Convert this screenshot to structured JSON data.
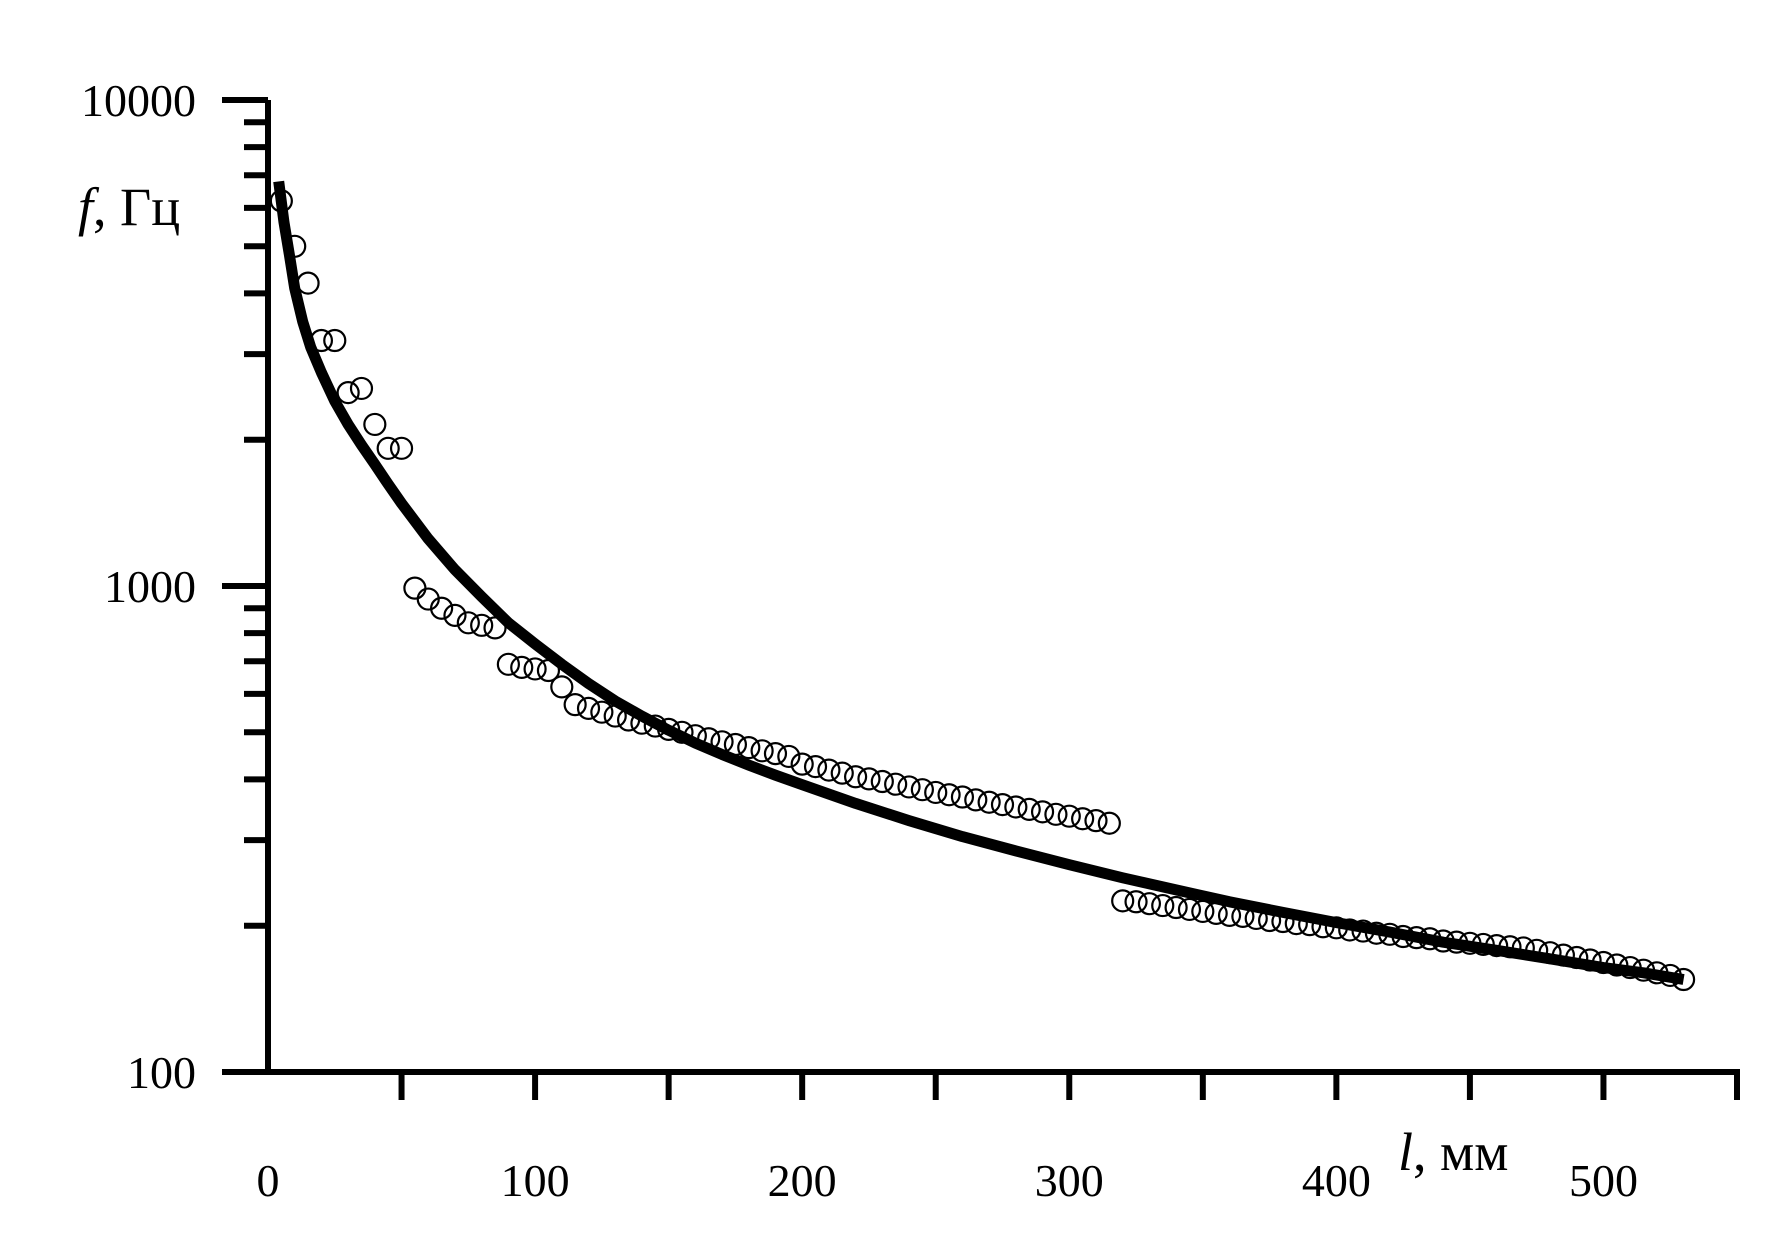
{
  "chart_data": {
    "type": "scatter",
    "title": "",
    "xlabel": {
      "symbol": "l",
      "unit": ", мм"
    },
    "ylabel": {
      "symbol": "f",
      "unit": ", Гц"
    },
    "x_scale": "linear",
    "y_scale": "log",
    "xlim": [
      0,
      550
    ],
    "ylim": [
      100,
      10000
    ],
    "x_ticks": [
      0,
      100,
      200,
      300,
      400,
      500
    ],
    "x_tick_labels": [
      "0",
      "100",
      "200",
      "300",
      "400",
      "500"
    ],
    "x_minor_ticks": [
      50,
      150,
      250,
      350,
      450,
      550
    ],
    "y_ticks": [
      100,
      1000,
      10000
    ],
    "y_tick_labels": [
      "100",
      "1000",
      "10000"
    ],
    "grid": false,
    "legend": "none",
    "colors": {
      "axis": "#000000",
      "curve": "#000000",
      "markers": "#000000"
    },
    "series": [
      {
        "type": "scatter",
        "marker": "open-circle",
        "points": [
          [
            5,
            6200
          ],
          [
            10,
            5000
          ],
          [
            15,
            4200
          ],
          [
            20,
            3200
          ],
          [
            25,
            3200
          ],
          [
            30,
            2500
          ],
          [
            35,
            2550
          ],
          [
            40,
            2150
          ],
          [
            45,
            1920
          ],
          [
            50,
            1920
          ],
          [
            55,
            990
          ],
          [
            60,
            940
          ],
          [
            65,
            900
          ],
          [
            70,
            870
          ],
          [
            75,
            840
          ],
          [
            80,
            830
          ],
          [
            85,
            820
          ],
          [
            90,
            690
          ],
          [
            95,
            680
          ],
          [
            100,
            675
          ],
          [
            105,
            670
          ],
          [
            110,
            620
          ],
          [
            115,
            570
          ],
          [
            120,
            560
          ],
          [
            125,
            550
          ],
          [
            130,
            540
          ],
          [
            135,
            530
          ],
          [
            140,
            522
          ],
          [
            145,
            515
          ],
          [
            150,
            507
          ],
          [
            155,
            500
          ],
          [
            160,
            492
          ],
          [
            165,
            485
          ],
          [
            170,
            478
          ],
          [
            175,
            472
          ],
          [
            180,
            465
          ],
          [
            185,
            458
          ],
          [
            190,
            452
          ],
          [
            195,
            446
          ],
          [
            200,
            430
          ],
          [
            205,
            425
          ],
          [
            210,
            418
          ],
          [
            215,
            412
          ],
          [
            220,
            405
          ],
          [
            225,
            401
          ],
          [
            230,
            396
          ],
          [
            235,
            391
          ],
          [
            240,
            386
          ],
          [
            245,
            381
          ],
          [
            250,
            376
          ],
          [
            255,
            372
          ],
          [
            260,
            368
          ],
          [
            265,
            363
          ],
          [
            270,
            359
          ],
          [
            275,
            355
          ],
          [
            280,
            351
          ],
          [
            285,
            347
          ],
          [
            290,
            343
          ],
          [
            295,
            339
          ],
          [
            300,
            336
          ],
          [
            305,
            332
          ],
          [
            310,
            329
          ],
          [
            315,
            325
          ],
          [
            320,
            225
          ],
          [
            325,
            224
          ],
          [
            330,
            222
          ],
          [
            335,
            220
          ],
          [
            340,
            218
          ],
          [
            345,
            216
          ],
          [
            350,
            214
          ],
          [
            355,
            212
          ],
          [
            360,
            210
          ],
          [
            365,
            209
          ],
          [
            370,
            207
          ],
          [
            375,
            205
          ],
          [
            380,
            204
          ],
          [
            385,
            202
          ],
          [
            390,
            201
          ],
          [
            395,
            199
          ],
          [
            400,
            198
          ],
          [
            405,
            196
          ],
          [
            410,
            195
          ],
          [
            415,
            193
          ],
          [
            420,
            192
          ],
          [
            425,
            190
          ],
          [
            430,
            189
          ],
          [
            435,
            188
          ],
          [
            440,
            186
          ],
          [
            445,
            185
          ],
          [
            450,
            184
          ],
          [
            455,
            183
          ],
          [
            460,
            182
          ],
          [
            465,
            181
          ],
          [
            470,
            180
          ],
          [
            475,
            178
          ],
          [
            480,
            176
          ],
          [
            485,
            174
          ],
          [
            490,
            172
          ],
          [
            495,
            170
          ],
          [
            500,
            168
          ],
          [
            505,
            166
          ],
          [
            510,
            164
          ],
          [
            515,
            162
          ],
          [
            520,
            160
          ],
          [
            525,
            158
          ],
          [
            530,
            155
          ]
        ]
      },
      {
        "type": "line",
        "style": "thick-solid",
        "points": [
          [
            4,
            6800
          ],
          [
            6,
            5600
          ],
          [
            8,
            4800
          ],
          [
            10,
            4100
          ],
          [
            13,
            3500
          ],
          [
            16,
            3100
          ],
          [
            20,
            2750
          ],
          [
            25,
            2400
          ],
          [
            30,
            2150
          ],
          [
            35,
            1950
          ],
          [
            40,
            1780
          ],
          [
            45,
            1620
          ],
          [
            50,
            1480
          ],
          [
            60,
            1250
          ],
          [
            70,
            1080
          ],
          [
            80,
            950
          ],
          [
            90,
            840
          ],
          [
            100,
            760
          ],
          [
            110,
            690
          ],
          [
            120,
            630
          ],
          [
            130,
            580
          ],
          [
            140,
            540
          ],
          [
            150,
            505
          ],
          [
            160,
            475
          ],
          [
            170,
            450
          ],
          [
            180,
            428
          ],
          [
            190,
            408
          ],
          [
            200,
            390
          ],
          [
            220,
            357
          ],
          [
            240,
            329
          ],
          [
            260,
            305
          ],
          [
            280,
            285
          ],
          [
            300,
            267
          ],
          [
            320,
            251
          ],
          [
            340,
            237
          ],
          [
            360,
            224
          ],
          [
            380,
            213
          ],
          [
            400,
            203
          ],
          [
            420,
            194
          ],
          [
            440,
            185
          ],
          [
            460,
            178
          ],
          [
            480,
            171
          ],
          [
            500,
            164
          ],
          [
            515,
            160
          ],
          [
            530,
            155
          ]
        ]
      }
    ]
  }
}
